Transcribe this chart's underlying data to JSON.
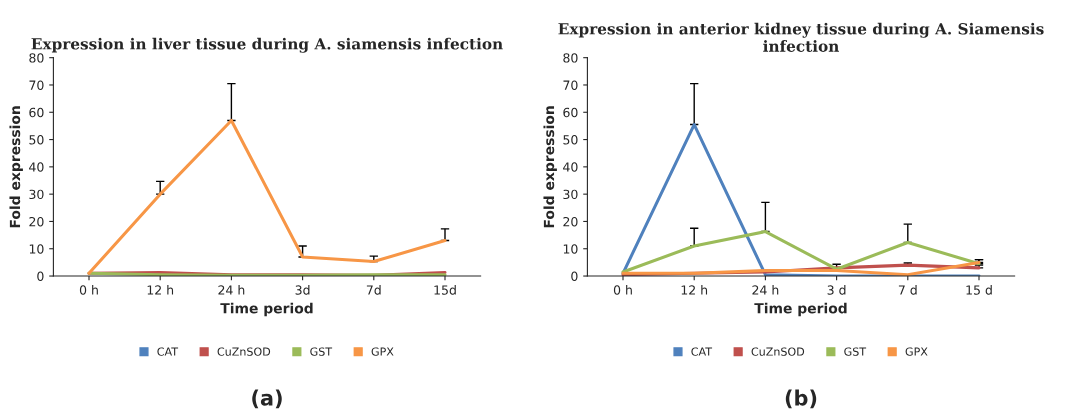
{
  "chart_data": [
    {
      "type": "line",
      "title": "Expression in liver tissue during A. siamensis infection",
      "xlabel": "Time period",
      "ylabel": "Fold expression",
      "categories": [
        "0 h",
        "12 h",
        "24 h",
        "3d",
        "7d",
        "15d"
      ],
      "ylim": [
        0,
        80
      ],
      "yticks": [
        0,
        10,
        20,
        30,
        40,
        50,
        60,
        70,
        80
      ],
      "grid": false,
      "legend": "bottom",
      "marker": "none",
      "line_style": "solid",
      "annotations": [
        "(a)"
      ],
      "series": [
        {
          "name": "CAT",
          "color": "#4f81bd",
          "values": [
            null,
            null,
            null,
            null,
            null,
            null
          ]
        },
        {
          "name": "CuZnSOD",
          "color": "#c0504d",
          "values": [
            1,
            1.3,
            0.5,
            0.5,
            0.3,
            1.3
          ]
        },
        {
          "name": "GST",
          "color": "#9bbb59",
          "values": [
            1,
            0.5,
            0.3,
            0.3,
            0.5,
            0.5
          ]
        },
        {
          "name": "GPX",
          "color": "#f79646",
          "values": [
            1,
            30,
            57,
            7,
            5.3,
            13
          ],
          "errors": [
            null,
            [
              30,
              34.7
            ],
            [
              57,
              70.5
            ],
            [
              7,
              11
            ],
            [
              5.3,
              7.3
            ],
            [
              13,
              17.3
            ]
          ]
        }
      ]
    },
    {
      "type": "line",
      "title": "Expression in anterior kidney tissue during A. Siamensis infection",
      "xlabel": "Time period",
      "ylabel": "Fold expression",
      "categories": [
        "0 h",
        "12 h",
        "24 h",
        "3 d",
        "7 d",
        "15 d"
      ],
      "ylim": [
        0,
        80
      ],
      "yticks": [
        0,
        10,
        20,
        30,
        40,
        50,
        60,
        70,
        80
      ],
      "grid": false,
      "legend": "bottom",
      "marker": "none",
      "line_style": "solid",
      "annotations": [
        "(b)"
      ],
      "series": [
        {
          "name": "CAT",
          "color": "#4f81bd",
          "values": [
            1,
            55.5,
            0.5,
            0,
            0,
            0
          ],
          "errors": [
            null,
            [
              55.5,
              70.5
            ],
            null,
            null,
            null,
            null
          ]
        },
        {
          "name": "CuZnSOD",
          "color": "#c0504d",
          "values": [
            0.5,
            1,
            1.5,
            3,
            4,
            3
          ],
          "errors": [
            null,
            null,
            null,
            [
              3,
              4.3
            ],
            [
              4,
              4.8
            ],
            [
              3,
              4
            ]
          ]
        },
        {
          "name": "GST",
          "color": "#9bbb59",
          "values": [
            1.5,
            11,
            16.3,
            2.5,
            12.3,
            4.5
          ],
          "errors": [
            null,
            [
              11,
              17.5
            ],
            [
              16.3,
              27
            ],
            null,
            [
              12.3,
              19
            ],
            [
              4.5,
              6
            ]
          ]
        },
        {
          "name": "GPX",
          "color": "#f79646",
          "values": [
            1,
            1,
            2,
            2,
            0.5,
            5
          ],
          "errors": [
            null,
            null,
            null,
            null,
            null,
            [
              5,
              6
            ]
          ]
        }
      ]
    }
  ]
}
